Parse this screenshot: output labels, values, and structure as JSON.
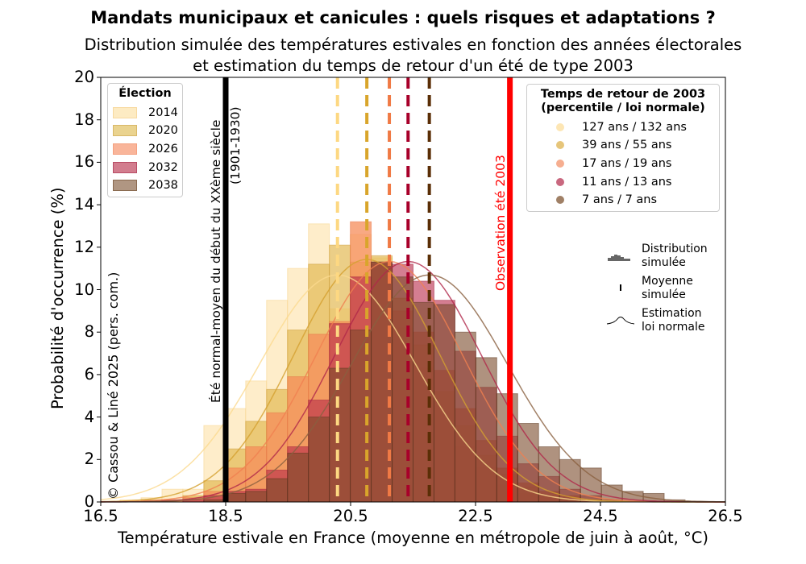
{
  "title": "Mandats municipaux et canicules : quels risques et adaptations ?",
  "subtitle_line1": "Distribution simulée des températures estivales en fonction des années électorales",
  "subtitle_line2": "et estimation du temps de retour d'un été de type 2003",
  "copyright": "© Cassou & Liné 2025 (pers. com.)",
  "reference_line": {
    "label_line1": "Été normal-moyen du début du XXème siècle",
    "label_line2": "(1901-1930)",
    "value": 18.5,
    "color": "#000000"
  },
  "observation_line": {
    "label": "Observation été 2003",
    "value": 23.05,
    "color": "#ff0000"
  },
  "legend_election": {
    "title": "Élection",
    "items": [
      "2014",
      "2020",
      "2026",
      "2032",
      "2038"
    ]
  },
  "legend_return": {
    "title_line1": "Temps de retour de 2003",
    "title_line2": "(percentile / loi normale)",
    "items": [
      "127 ans / 132 ans",
      "39 ans / 55 ans",
      "17 ans / 19 ans",
      "11 ans / 13 ans",
      "7 ans / 7 ans"
    ]
  },
  "legend_style": {
    "items": [
      {
        "icon": "histogram-icon",
        "line1": "Distribution",
        "line2": "simulée"
      },
      {
        "icon": "dash-icon",
        "line1": "Moyenne",
        "line2": "simulée"
      },
      {
        "icon": "bell-curve-icon",
        "line1": "Estimation",
        "line2": "loi normale"
      }
    ]
  },
  "chart_data": {
    "type": "histogram",
    "title": "Mandats municipaux et canicules : quels risques et adaptations ?",
    "xlabel": "Température estivale en France (moyenne en métropole de juin à août, °C)",
    "ylabel": "Probabilité d'occurrence (%)",
    "xlim": [
      16.5,
      26.5
    ],
    "ylim": [
      0,
      20
    ],
    "xticks": [
      16.5,
      18.5,
      20.5,
      22.5,
      24.5,
      26.5
    ],
    "xtick_labels": [
      "16.5",
      "18.5",
      "20.5",
      "22.5",
      "24.5",
      "26.5"
    ],
    "yticks": [
      0,
      2,
      4,
      6,
      8,
      10,
      12,
      14,
      16,
      18,
      20
    ],
    "ytick_labels": [
      "0",
      "2",
      "4",
      "6",
      "8",
      "10",
      "12",
      "14",
      "16",
      "18",
      "20"
    ],
    "grid": false,
    "bin_start": 16.81,
    "bin_width": 0.335,
    "series": [
      {
        "name": "2014",
        "color": "#fde6b4",
        "edge": "#f7d48a",
        "line": "#fbd98e",
        "mean": 20.29,
        "std": 1.25,
        "values": [
          0.1,
          0.2,
          0.6,
          0.6,
          3.6,
          4.4,
          5.7,
          9.5,
          11.0,
          13.1,
          9.1,
          12.6,
          11.5,
          8.2,
          6.3,
          4.3,
          2.6,
          1.6,
          0.8,
          0.4,
          0.2,
          0.1,
          0,
          0,
          0,
          0,
          0
        ]
      },
      {
        "name": "2020",
        "color": "#e2b954",
        "edge": "#c99a37",
        "line": "#d4a02f",
        "mean": 20.76,
        "std": 1.17,
        "values": [
          0,
          0.1,
          0.1,
          0.3,
          1.0,
          2.5,
          3.8,
          5.3,
          8.1,
          11.2,
          12.1,
          11.3,
          11.6,
          9.6,
          7.4,
          5.2,
          3.6,
          2.2,
          1.3,
          0.7,
          0.3,
          0.1,
          0.1,
          0,
          0,
          0,
          0
        ]
      },
      {
        "name": "2026",
        "color": "#f58c5a",
        "edge": "#e87548",
        "line": "#f08050",
        "mean": 21.12,
        "std": 1.18,
        "values": [
          0,
          0,
          0.1,
          0.2,
          0.5,
          1.6,
          2.6,
          4.2,
          5.9,
          7.9,
          8.5,
          13.2,
          11.2,
          9.0,
          8.0,
          6.2,
          4.4,
          2.9,
          1.6,
          0.9,
          0.5,
          0.3,
          0.1,
          0,
          0,
          0,
          0
        ]
      },
      {
        "name": "2032",
        "color": "#b82848",
        "edge": "#a01d3a",
        "line": "#b0284a",
        "mean": 21.42,
        "std": 1.18,
        "values": [
          0,
          0,
          0,
          0.1,
          0.3,
          0.5,
          0.6,
          1.5,
          2.6,
          4.8,
          8.4,
          10.6,
          11.3,
          11.2,
          10.4,
          9.5,
          7.1,
          5.4,
          3.1,
          1.8,
          1.2,
          0.6,
          0.3,
          0.1,
          0,
          0,
          0
        ]
      },
      {
        "name": "2038",
        "color": "#7a4a2a",
        "edge": "#5a361e",
        "line": "#8a6040",
        "mean": 21.76,
        "std": 1.25,
        "values": [
          0,
          0,
          0,
          0,
          0.1,
          0.4,
          0.5,
          1.1,
          2.3,
          4.0,
          6.3,
          8.1,
          11.3,
          10.6,
          9.4,
          9.3,
          8.0,
          6.8,
          5.1,
          3.7,
          2.6,
          2.0,
          1.6,
          0.8,
          0.5,
          0.4,
          0.1
        ]
      }
    ],
    "mean_line_colors": [
      "#fdd882",
      "#d9a52b",
      "#f07a45",
      "#a8002a",
      "#5a2e06"
    ],
    "vertical_lines": [
      {
        "label": "Été normal-moyen du début du XXème siècle (1901-1930)",
        "x": 18.5,
        "color": "#000000"
      },
      {
        "label": "Observation été 2003",
        "x": 23.05,
        "color": "#ff0000"
      }
    ],
    "legend_placement": [
      "top-left",
      "top-right",
      "right"
    ]
  }
}
